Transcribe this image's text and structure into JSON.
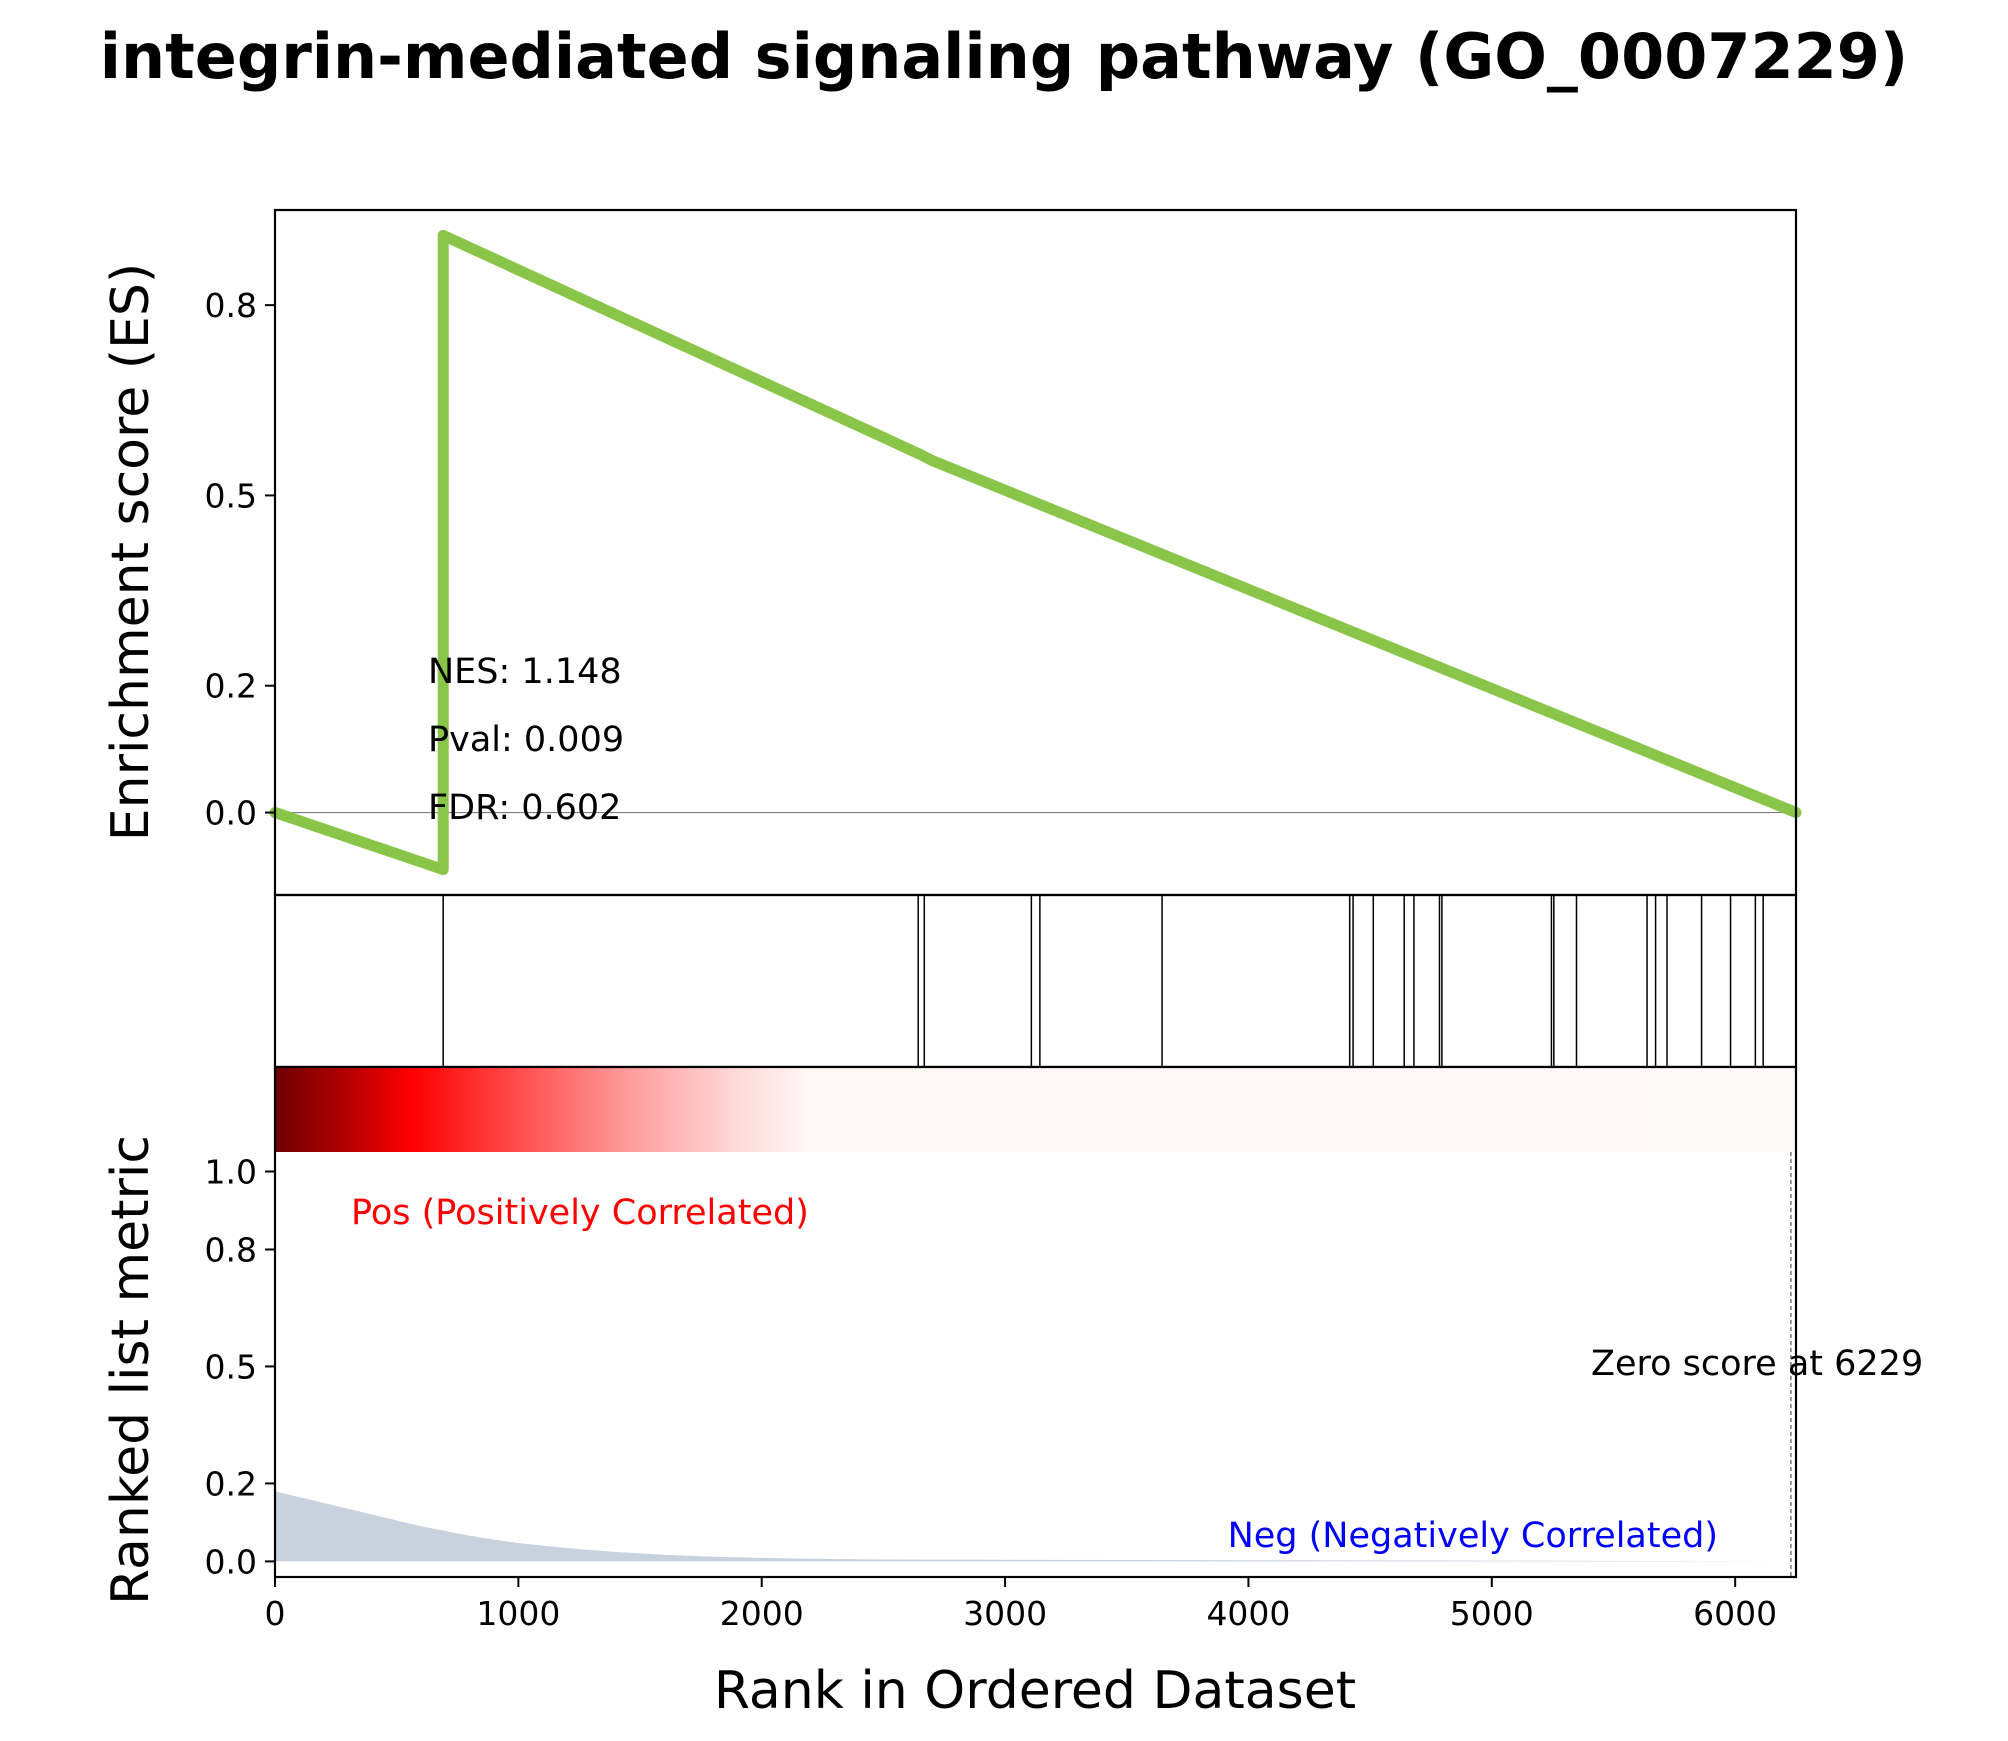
{
  "title": "integrin-mediated signaling pathway (GO_0007229)",
  "colors": {
    "es_line": "#88c548",
    "hit_line": "#000000",
    "metric_fill": "#c8d2dc",
    "pos_text": "#ff0000",
    "neg_text": "#0000ff",
    "zero_line": "#808080"
  },
  "chart_data": [
    {
      "type": "line",
      "panel": "enrichment-score",
      "ylabel": "Enrichment score (ES)",
      "xlim": [
        0,
        6250
      ],
      "ylim": [
        -0.13,
        0.95
      ],
      "yticks": [
        0.0,
        0.2,
        0.5,
        0.8
      ],
      "ytick_labels": [
        "0.0",
        "0.2",
        "0.5",
        "0.8"
      ],
      "zero_line": true,
      "series": [
        {
          "x": [
            0,
            691,
            691,
            2650,
            2700,
            6250
          ],
          "y": [
            0.0,
            -0.09,
            0.91,
            0.565,
            0.555,
            0.0
          ]
        }
      ],
      "stats": {
        "nes": "NES: 1.148",
        "pval": "Pval: 0.009",
        "fdr": "FDR: 0.602"
      }
    },
    {
      "type": "hits",
      "panel": "gene-hits",
      "positions": [
        691,
        2643,
        2668,
        3108,
        3143,
        3645,
        4416,
        4430,
        4513,
        4640,
        4680,
        4785,
        4795,
        5245,
        5255,
        5348,
        5638,
        5673,
        5720,
        5862,
        5981,
        6083,
        6115
      ]
    },
    {
      "type": "area",
      "panel": "ranked-list-metric",
      "ylabel": "Ranked list metric",
      "xlabel": "Rank in Ordered Dataset",
      "xlim": [
        0,
        6250
      ],
      "xticks": [
        0,
        1000,
        2000,
        3000,
        4000,
        5000,
        6000
      ],
      "xtick_labels": [
        "0",
        "1000",
        "2000",
        "3000",
        "4000",
        "5000",
        "6000"
      ],
      "ylim": [
        -0.04,
        1.05
      ],
      "yticks": [
        0.0,
        0.2,
        0.5,
        0.8,
        1.0
      ],
      "ytick_labels": [
        "0.0",
        "0.2",
        "0.5",
        "0.8",
        "1.0"
      ],
      "series": [
        {
          "x": [
            0,
            100,
            200,
            300,
            400,
            500,
            600,
            700,
            800,
            900,
            1000,
            1200,
            1400,
            1600,
            1800,
            2000,
            2200,
            2500,
            3000,
            4000,
            5000,
            6229
          ],
          "y": [
            0.18,
            0.165,
            0.15,
            0.135,
            0.12,
            0.105,
            0.09,
            0.078,
            0.066,
            0.056,
            0.047,
            0.034,
            0.024,
            0.017,
            0.012,
            0.009,
            0.007,
            0.005,
            0.004,
            0.003,
            0.002,
            0.0
          ]
        }
      ],
      "pos_label": "Pos (Positively Correlated)",
      "neg_label": "Neg (Negatively Correlated)",
      "zero_score_label": "Zero score at 6229",
      "zero_score_rank": 6229
    }
  ]
}
